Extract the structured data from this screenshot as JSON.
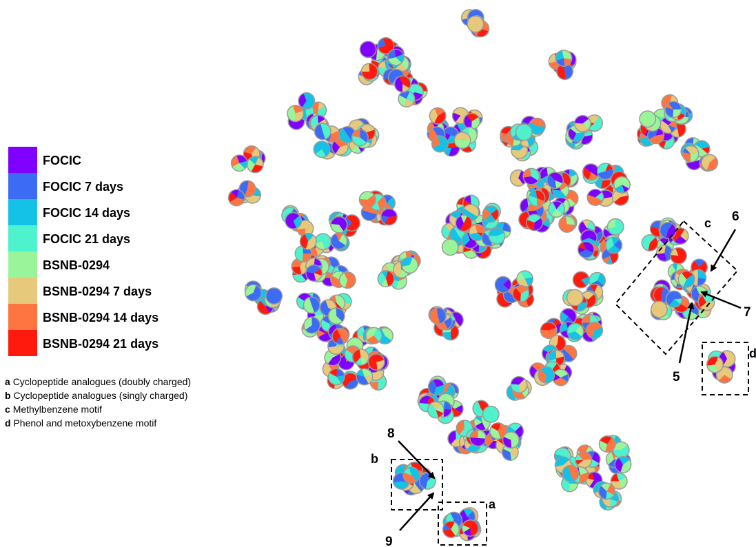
{
  "legend": [
    {
      "label": "FOCIC",
      "color": "#7f00ff"
    },
    {
      "label": "FOCIC 7 days",
      "color": "#3c6cf5"
    },
    {
      "label": "FOCIC 14 days",
      "color": "#13c2e6"
    },
    {
      "label": "FOCIC 21 days",
      "color": "#4ef2cc"
    },
    {
      "label": "BSNB-0294",
      "color": "#9af59a"
    },
    {
      "label": "BSNB-0294 7 days",
      "color": "#e6c97a"
    },
    {
      "label": "BSNB-0294 14 days",
      "color": "#ff7542"
    },
    {
      "label": "BSNB-0294 21 days",
      "color": "#ff1a0d"
    }
  ],
  "annotations": [
    {
      "key": "a",
      "text": "Cyclopeptide analogues (doubly charged)"
    },
    {
      "key": "b",
      "text": "Cyclopeptide analogues (singly charged)"
    },
    {
      "key": "c",
      "text": "Methylbenzene motif"
    },
    {
      "key": "d",
      "text": "Phenol and metoxybenzene motif"
    }
  ],
  "boxes": {
    "a": "a",
    "b": "b",
    "c": "c",
    "d": "d"
  },
  "markers": [
    "5",
    "6",
    "7",
    "8",
    "9"
  ]
}
